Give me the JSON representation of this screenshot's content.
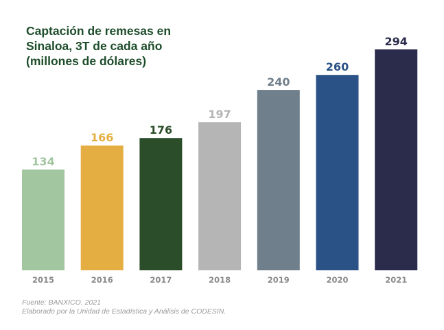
{
  "chart_data": {
    "type": "bar",
    "title_lines": [
      "Captación de remesas en",
      "Sinaloa, 3T de cada año",
      "(millones de dólares)"
    ],
    "title": "Captación de remesas en Sinaloa, 3T de cada año (millones de dólares)",
    "xlabel": "",
    "ylabel": "",
    "ylim": [
      0,
      294
    ],
    "grid": false,
    "legend": "none",
    "categories": [
      "2015",
      "2016",
      "2017",
      "2018",
      "2019",
      "2020",
      "2021"
    ],
    "values": [
      134,
      166,
      176,
      197,
      240,
      260,
      294
    ],
    "data_labels": [
      "134",
      "166",
      "176",
      "197",
      "240",
      "260",
      "294"
    ],
    "bar_colors": [
      "#a2c6a0",
      "#e5ae42",
      "#2b4d2a",
      "#b4b5b4",
      "#6f7f8b",
      "#2b5286",
      "#2b2b4c"
    ]
  },
  "footer": {
    "source": "Fuente: BANXICO. 2021",
    "credit": "Elaborado por la Unidad de Estadística y Análisis de CODESIN."
  }
}
